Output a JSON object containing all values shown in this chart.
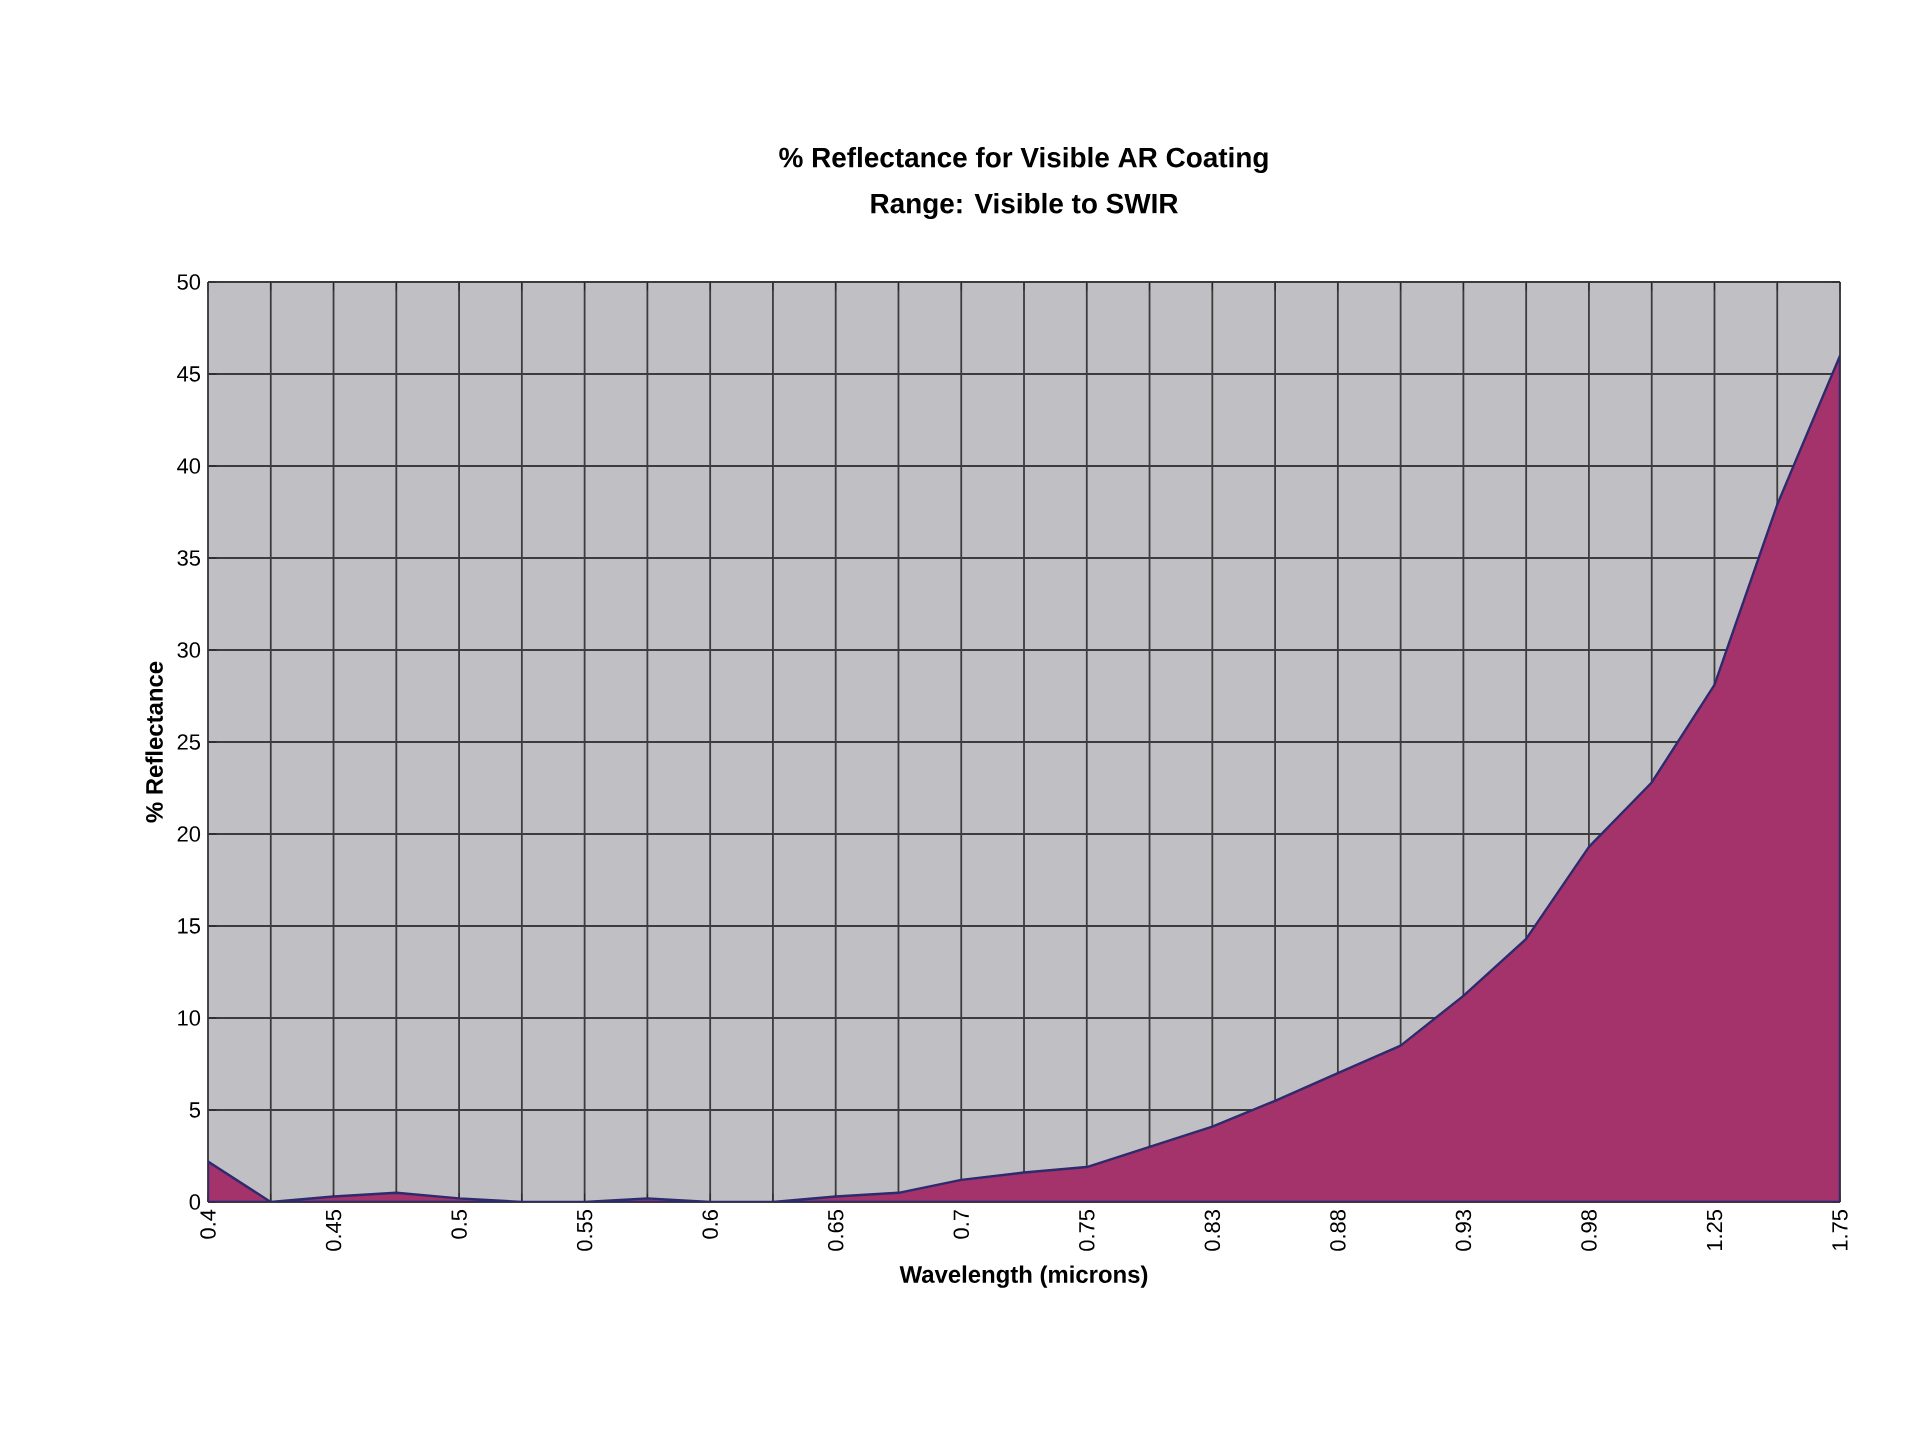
{
  "chart_data": {
    "type": "area",
    "title": "% Reflectance for Visible AR Coating",
    "subtitle": "Range: Visible to SWIR",
    "xlabel": "Wavelength (microns)",
    "ylabel": "% Reflectance",
    "categories": [
      "0.4",
      null,
      "0.45",
      null,
      "0.5",
      null,
      "0.55",
      null,
      "0.6",
      null,
      "0.65",
      null,
      "0.7",
      null,
      "0.75",
      null,
      "0.83",
      null,
      "0.88",
      null,
      "0.93",
      null,
      "0.98",
      null,
      "1.25",
      null,
      "1.75"
    ],
    "series": [
      {
        "color": "#a3336a",
        "values": [
          2.2,
          0,
          0.3,
          0.5,
          0.2,
          0,
          0,
          0.2,
          0,
          0,
          0.3,
          0.5,
          1.2,
          1.6,
          1.9,
          3.0,
          4.1,
          5.5,
          7.0,
          8.5,
          11.2,
          14.3,
          19.3,
          22.8,
          28.1,
          37.9,
          46.0
        ]
      }
    ],
    "ylim": [
      0,
      50
    ],
    "yticks": [
      0,
      5,
      10,
      15,
      20,
      25,
      30,
      35,
      40,
      45,
      50
    ],
    "grid": true
  }
}
